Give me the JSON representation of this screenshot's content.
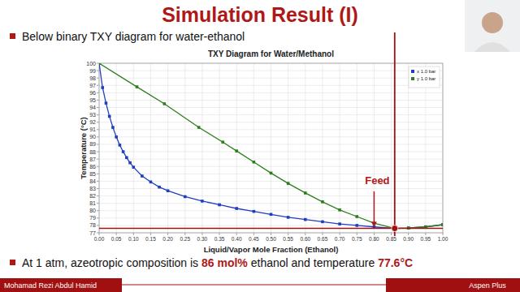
{
  "slide": {
    "title": "Simulation Result (I)",
    "bullets": [
      {
        "parts": [
          {
            "text": "Below binary TXY diagram for water-ethanol",
            "emphasis": false
          }
        ]
      },
      {
        "parts": [
          {
            "text": "At 1 atm, azeotropic composition is ",
            "emphasis": false
          },
          {
            "text": "86 mol%",
            "emphasis": true
          },
          {
            "text": " ethanol and temperature ",
            "emphasis": false
          },
          {
            "text": "77.6°C",
            "emphasis": true
          }
        ]
      }
    ],
    "footer": {
      "author": "Mohamad Rezi Abdul Hamid",
      "software": "Aspen Plus"
    }
  },
  "chart_data": {
    "type": "line",
    "title": "TXY Diagram for Water/Methanol",
    "x_label": "Liquid/Vapor Mole Fraction (Ethanol)",
    "y_label": "Temperature (°C)",
    "xlim": [
      0,
      1
    ],
    "ylim": [
      77,
      100
    ],
    "xticks": [
      {
        "value": 0,
        "label": "0.00"
      },
      {
        "value": 0.05,
        "label": "0.05"
      },
      {
        "value": 0.1,
        "label": "0.10"
      },
      {
        "value": 0.15,
        "label": "0.15"
      },
      {
        "value": 0.2,
        "label": "0.20"
      },
      {
        "value": 0.25,
        "label": "0.25"
      },
      {
        "value": 0.3,
        "label": "0.30"
      },
      {
        "value": 0.35,
        "label": "0.35"
      },
      {
        "value": 0.4,
        "label": "0.40"
      },
      {
        "value": 0.45,
        "label": "0.45"
      },
      {
        "value": 0.5,
        "label": "0.50"
      },
      {
        "value": 0.55,
        "label": "0.55"
      },
      {
        "value": 0.6,
        "label": "0.60"
      },
      {
        "value": 0.65,
        "label": "0.65"
      },
      {
        "value": 0.7,
        "label": "0.70"
      },
      {
        "value": 0.75,
        "label": "0.75"
      },
      {
        "value": 0.8,
        "label": "0.80"
      },
      {
        "value": 0.85,
        "label": "0.85"
      },
      {
        "value": 0.9,
        "label": "0.90"
      },
      {
        "value": 0.95,
        "label": "0.95"
      },
      {
        "value": 1,
        "label": "1.00"
      }
    ],
    "yticks": [
      77,
      78,
      79,
      80,
      81,
      82,
      83,
      84,
      85,
      86,
      87,
      88,
      89,
      90,
      91,
      92,
      93,
      94,
      95,
      96,
      97,
      98,
      99,
      100
    ],
    "grid": true,
    "legend": "top-right",
    "series": [
      {
        "name": "x 1.0 bar",
        "color": "#1f3fbf",
        "marker": "square",
        "line_style": "solid",
        "x": [
          0,
          0.01,
          0.02,
          0.03,
          0.04,
          0.05,
          0.06,
          0.07,
          0.08,
          0.09,
          0.1,
          0.125,
          0.15,
          0.175,
          0.2,
          0.25,
          0.3,
          0.35,
          0.4,
          0.45,
          0.5,
          0.55,
          0.6,
          0.65,
          0.7,
          0.75,
          0.8,
          0.86,
          0.9,
          0.95,
          1
        ],
        "values": [
          100,
          96.7,
          94.6,
          92.8,
          91.3,
          90.0,
          88.9,
          88.0,
          87.2,
          86.5,
          85.9,
          84.7,
          83.9,
          83.2,
          82.7,
          81.9,
          81.3,
          80.8,
          80.3,
          79.9,
          79.5,
          79.1,
          78.8,
          78.5,
          78.2,
          78.0,
          77.8,
          77.6,
          77.65,
          77.8,
          78.1
        ]
      },
      {
        "name": "y 1.0 bar",
        "color": "#2e7d1e",
        "marker": "square",
        "line_style": "solid",
        "x": [
          0,
          0.11,
          0.19,
          0.29,
          0.36,
          0.4,
          0.45,
          0.5,
          0.55,
          0.6,
          0.65,
          0.7,
          0.75,
          0.8,
          0.86,
          0.9,
          0.95,
          1
        ],
        "values": [
          100,
          96.8,
          94.5,
          91.3,
          89.3,
          88.1,
          86.6,
          85.1,
          83.7,
          82.4,
          81.2,
          80.1,
          79.2,
          78.3,
          77.6,
          77.65,
          77.8,
          78.1
        ]
      }
    ],
    "azeotrope": {
      "x": 0.86,
      "y": 77.6
    },
    "annotations": [
      {
        "label": "Feed",
        "x": 0.8
      }
    ]
  }
}
